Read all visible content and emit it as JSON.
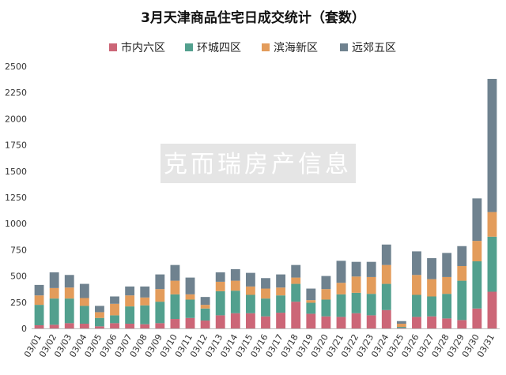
{
  "chart_data": {
    "type": "bar",
    "stacked": true,
    "title": "3月天津商品住宅日成交统计（套数）",
    "categories": [
      "03/01",
      "03/02",
      "03/03",
      "03/04",
      "03/05",
      "03/06",
      "03/07",
      "03/08",
      "03/09",
      "03/10",
      "03/11",
      "03/12",
      "03/13",
      "03/14",
      "03/15",
      "03/16",
      "03/17",
      "03/18",
      "03/19",
      "03/20",
      "03/21",
      "03/22",
      "03/23",
      "03/24",
      "03/25",
      "03/26",
      "03/27",
      "03/28",
      "03/29",
      "03/30",
      "03/31"
    ],
    "series": [
      {
        "name": "市内六区",
        "color": "#cc6677",
        "values": [
          30,
          35,
          50,
          45,
          20,
          50,
          45,
          40,
          50,
          90,
          100,
          75,
          125,
          145,
          145,
          115,
          150,
          255,
          140,
          115,
          110,
          145,
          125,
          175,
          5,
          110,
          115,
          95,
          80,
          190,
          350
        ]
      },
      {
        "name": "环城四区",
        "color": "#52a08e",
        "values": [
          195,
          250,
          235,
          170,
          80,
          75,
          165,
          180,
          205,
          235,
          175,
          115,
          230,
          215,
          175,
          170,
          165,
          170,
          105,
          160,
          215,
          195,
          205,
          250,
          10,
          210,
          190,
          235,
          375,
          450,
          525
        ]
      },
      {
        "name": "滨海新区",
        "color": "#e39c5b",
        "values": [
          90,
          100,
          105,
          75,
          55,
          110,
          105,
          75,
          120,
          130,
          50,
          35,
          90,
          95,
          80,
          95,
          75,
          60,
          25,
          100,
          110,
          155,
          160,
          180,
          30,
          190,
          165,
          160,
          140,
          195,
          235
        ]
      },
      {
        "name": "远郊五区",
        "color": "#6f828f",
        "values": [
          100,
          150,
          120,
          135,
          60,
          70,
          85,
          105,
          140,
          150,
          160,
          75,
          90,
          110,
          130,
          100,
          125,
          120,
          110,
          125,
          210,
          140,
          145,
          195,
          25,
          225,
          200,
          230,
          190,
          405,
          1270
        ]
      }
    ],
    "ylim": [
      0,
      2500
    ],
    "yticks": [
      0,
      250,
      500,
      750,
      1000,
      1250,
      1500,
      1750,
      2000,
      2250,
      2500
    ],
    "grid": false,
    "legend": "top",
    "watermark": "克而瑞房产信息"
  }
}
